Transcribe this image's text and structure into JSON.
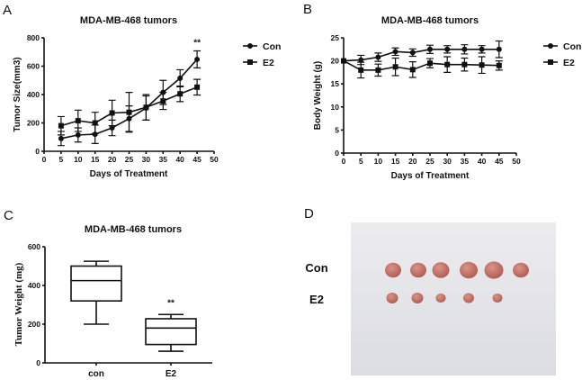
{
  "chart_data": [
    {
      "panel": "A",
      "type": "line",
      "title": "MDA-MB-468 tumors",
      "xlabel": "Days of Treatment",
      "ylabel": "Tumor Size(mm3)",
      "xlim": [
        0,
        50
      ],
      "ylim": [
        0,
        800
      ],
      "xticks": [
        0,
        5,
        10,
        15,
        20,
        25,
        30,
        35,
        40,
        45,
        50
      ],
      "yticks": [
        0,
        200,
        400,
        600,
        800
      ],
      "legend": "right",
      "annotation": {
        "text": "**",
        "x": 45
      },
      "series": [
        {
          "name": "Con",
          "marker": "circle",
          "x": [
            5,
            10,
            15,
            20,
            25,
            30,
            35,
            40,
            45
          ],
          "y": [
            90,
            115,
            120,
            165,
            230,
            305,
            415,
            515,
            648
          ],
          "err": [
            50,
            50,
            65,
            55,
            90,
            85,
            85,
            60,
            60
          ]
        },
        {
          "name": "E2",
          "marker": "square",
          "x": [
            5,
            10,
            15,
            20,
            25,
            30,
            35,
            40,
            45
          ],
          "y": [
            180,
            215,
            200,
            270,
            275,
            310,
            355,
            405,
            452
          ],
          "err": [
            65,
            75,
            75,
            90,
            140,
            90,
            60,
            55,
            55
          ]
        }
      ]
    },
    {
      "panel": "B",
      "type": "line",
      "title": "MDA-MB-468 tumors",
      "xlabel": "Days of Treatment",
      "ylabel": "Body Weight (g)",
      "xlim": [
        0,
        50
      ],
      "ylim": [
        0,
        25
      ],
      "xticks": [
        0,
        5,
        10,
        15,
        20,
        25,
        30,
        35,
        40,
        45,
        50
      ],
      "yticks": [
        0,
        5,
        10,
        15,
        20,
        25
      ],
      "legend": "right",
      "series": [
        {
          "name": "Con",
          "marker": "circle",
          "x": [
            0,
            5,
            10,
            15,
            20,
            25,
            30,
            35,
            40,
            45
          ],
          "y": [
            20,
            20.2,
            20.8,
            22,
            21.8,
            22.5,
            22.5,
            22.5,
            22.5,
            22.5
          ],
          "err": [
            0,
            1,
            0.9,
            0.8,
            0.8,
            0.9,
            0.8,
            1,
            0.8,
            1.8
          ]
        },
        {
          "name": "E2",
          "marker": "square",
          "x": [
            0,
            5,
            10,
            15,
            20,
            25,
            30,
            35,
            40,
            45
          ],
          "y": [
            20,
            18,
            18,
            18.7,
            18.1,
            19.5,
            19.2,
            19.2,
            19.1,
            19
          ],
          "err": [
            0,
            1.7,
            1.3,
            1.9,
            1.7,
            1,
            1.7,
            1.4,
            1.8,
            1
          ]
        }
      ]
    },
    {
      "panel": "C",
      "type": "box",
      "title": "MDA-MB-468 tumors",
      "ylabel": "Tumor Weight (mg)",
      "ylim": [
        0,
        600
      ],
      "yticks": [
        0,
        200,
        400,
        600
      ],
      "categories": [
        "con",
        "E2"
      ],
      "boxes": [
        {
          "min": 200,
          "q1": 320,
          "median": 425,
          "q3": 500,
          "max": 525
        },
        {
          "min": 60,
          "q1": 95,
          "median": 180,
          "q3": 228,
          "max": 250
        }
      ],
      "annotation": {
        "text": "**",
        "category": "E2"
      }
    }
  ],
  "panels": {
    "A": "A",
    "B": "B",
    "C": "C",
    "D": "D"
  },
  "photo": {
    "row_labels": [
      "Con",
      "E2"
    ],
    "counts": [
      6,
      5
    ],
    "background": "#e9e9ec",
    "tumor_color": "#c4736a"
  }
}
